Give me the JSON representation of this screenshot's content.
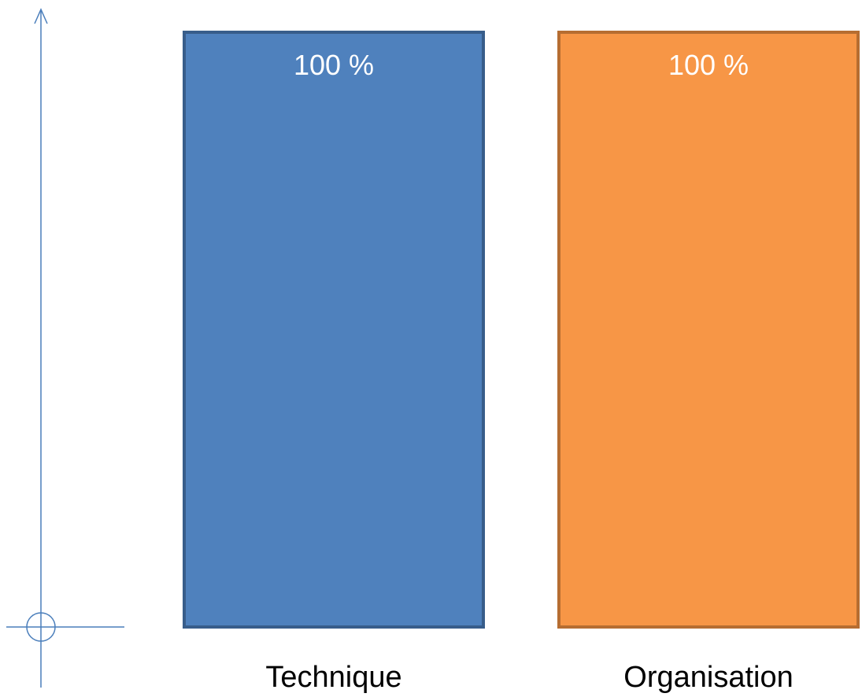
{
  "chart_data": {
    "type": "bar",
    "categories": [
      "Technique",
      "Organisation"
    ],
    "values": [
      100,
      100
    ],
    "data_labels": [
      "100 %",
      "100 %"
    ],
    "colors": {
      "fill": [
        "#4f81bd",
        "#f79646"
      ],
      "stroke": [
        "#385d8a",
        "#b66d31"
      ],
      "axis": "#4a7ebb"
    },
    "ylim": [
      0,
      100
    ],
    "grid": false,
    "legend": "none"
  }
}
